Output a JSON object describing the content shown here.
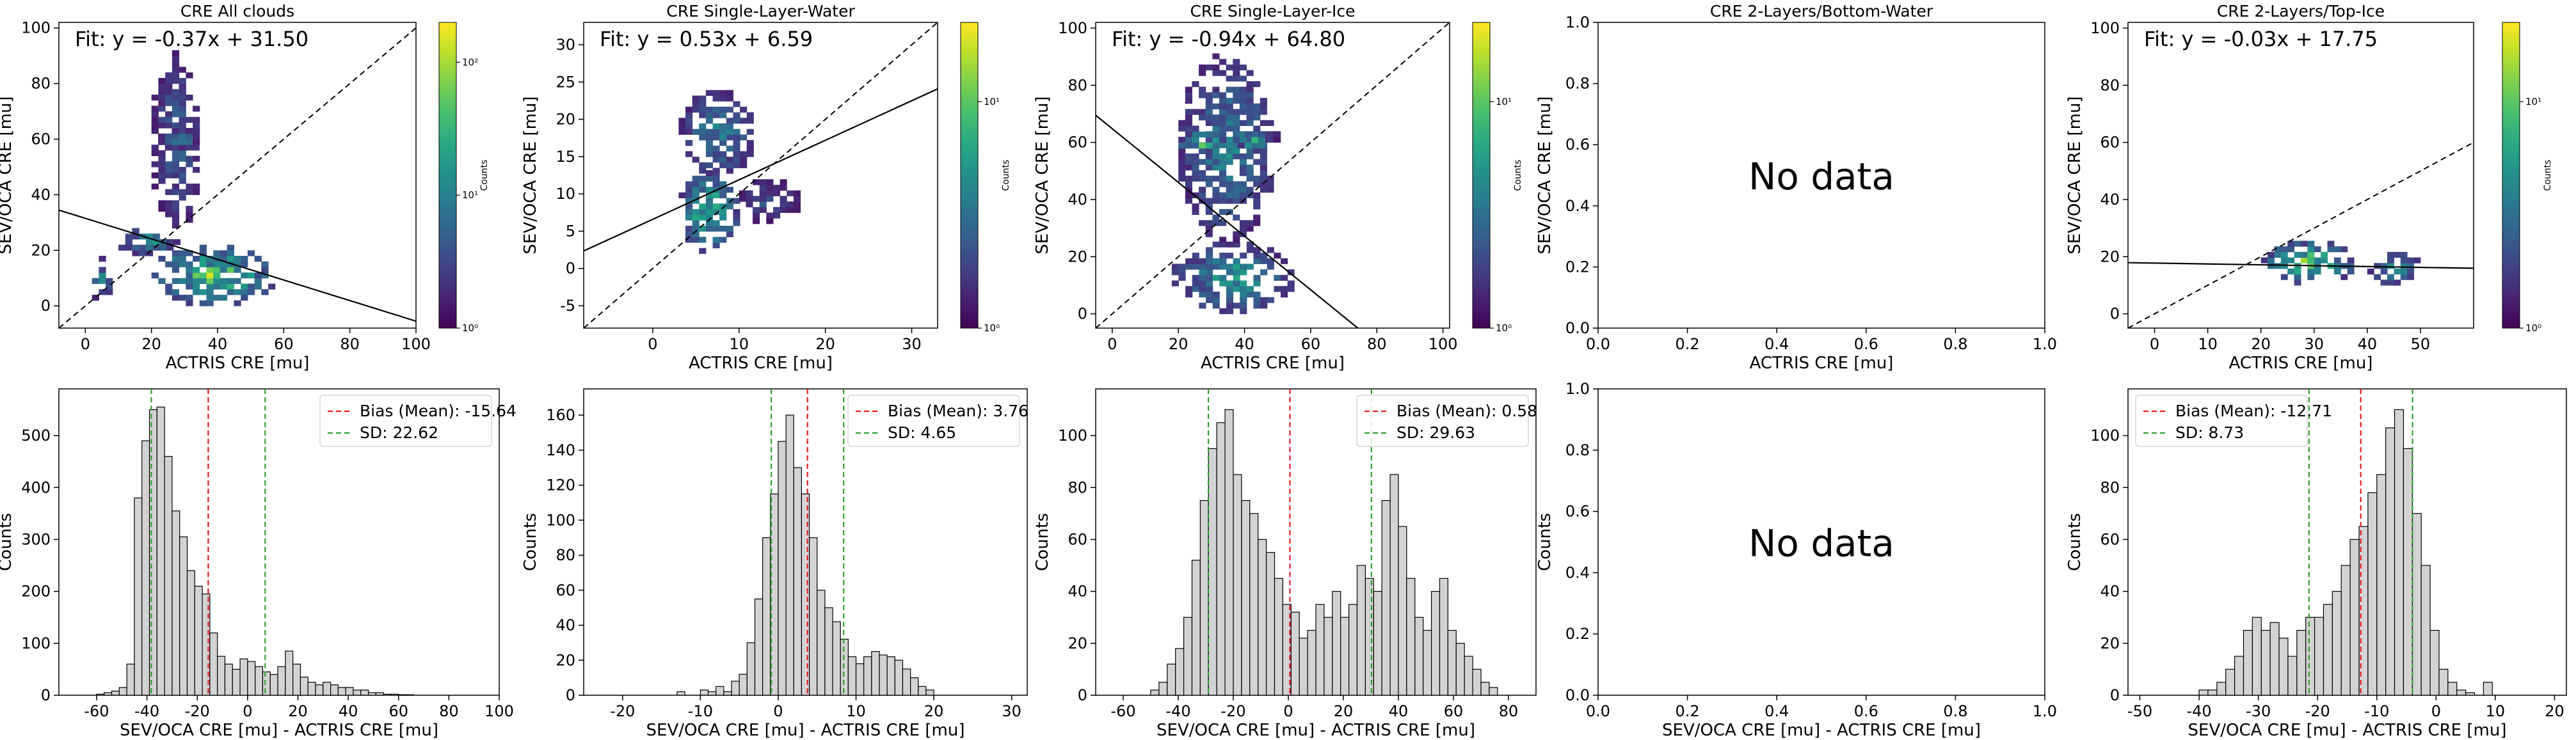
{
  "chart_data": [
    {
      "type": "heatmap",
      "title": "CRE All clouds",
      "xlabel": "ACTRIS CRE [mu]",
      "ylabel": "SEV/OCA CRE [mu]",
      "xlim": [
        -8,
        100
      ],
      "ylim": [
        -8,
        102
      ],
      "xticks": [
        0,
        20,
        40,
        60,
        80,
        100
      ],
      "yticks": [
        0,
        20,
        40,
        60,
        80,
        100
      ],
      "fit_text": "Fit: y = -0.37x + 31.50",
      "fit": {
        "slope": -0.37,
        "intercept": 31.5
      },
      "colorbar": {
        "label": "Counts",
        "ticks": [
          "10⁰",
          "10¹",
          "10²"
        ],
        "max_exp": 2.3
      },
      "blobs": [
        {
          "x": [
            20,
            58
          ],
          "y": [
            0,
            22
          ],
          "peak": 2.3
        },
        {
          "x": [
            10,
            28
          ],
          "y": [
            18,
            28
          ],
          "peak": 1.6
        },
        {
          "x": [
            2,
            8
          ],
          "y": [
            0,
            18
          ],
          "peak": 1.4
        },
        {
          "x": [
            20,
            35
          ],
          "y": [
            26,
            92
          ],
          "peak": 1.0
        },
        {
          "x": [
            22,
            36
          ],
          "y": [
            56,
            64
          ],
          "peak": 1.2
        }
      ]
    },
    {
      "type": "heatmap",
      "title": "CRE Single-Layer-Water",
      "xlabel": "ACTRIS CRE [mu]",
      "ylabel": "SEV/OCA CRE [mu]",
      "xlim": [
        -8,
        33
      ],
      "ylim": [
        -8,
        33
      ],
      "xticks": [
        0,
        10,
        20,
        30
      ],
      "yticks": [
        -5,
        0,
        5,
        10,
        15,
        20,
        25,
        30
      ],
      "fit_text": "Fit: y = 0.53x + 6.59",
      "fit": {
        "slope": 0.53,
        "intercept": 6.59
      },
      "colorbar": {
        "label": "Counts",
        "ticks": [
          "10⁰",
          "10¹"
        ],
        "max_exp": 1.35
      },
      "blobs": [
        {
          "x": [
            3,
            10
          ],
          "y": [
            2,
            13
          ],
          "peak": 1.3
        },
        {
          "x": [
            3,
            12
          ],
          "y": [
            12,
            24
          ],
          "peak": 0.8
        },
        {
          "x": [
            10,
            17
          ],
          "y": [
            6,
            12
          ],
          "peak": 0.5
        }
      ]
    },
    {
      "type": "heatmap",
      "title": "CRE Single-Layer-Ice",
      "xlabel": "ACTRIS CRE [mu]",
      "ylabel": "SEV/OCA CRE [mu]",
      "xlim": [
        -5,
        102
      ],
      "ylim": [
        -5,
        102
      ],
      "xticks": [
        0,
        20,
        40,
        60,
        80,
        100
      ],
      "yticks": [
        0,
        20,
        40,
        60,
        80,
        100
      ],
      "fit_text": "Fit: y = -0.94x + 64.80",
      "fit": {
        "slope": -0.94,
        "intercept": 64.8
      },
      "colorbar": {
        "label": "Counts",
        "ticks": [
          "10⁰",
          "10¹"
        ],
        "max_exp": 1.35
      },
      "blobs": [
        {
          "x": [
            18,
            55
          ],
          "y": [
            0,
            25
          ],
          "peak": 1.0
        },
        {
          "x": [
            20,
            50
          ],
          "y": [
            25,
            92
          ],
          "peak": 0.8
        },
        {
          "x": [
            20,
            35
          ],
          "y": [
            56,
            64
          ],
          "peak": 1.3
        },
        {
          "x": [
            38,
            48
          ],
          "y": [
            56,
            64
          ],
          "peak": 1.1
        }
      ]
    },
    {
      "type": "heatmap",
      "title": "CRE 2-Layers/Bottom-Water",
      "xlabel": "ACTRIS CRE [mu]",
      "ylabel": "SEV/OCA CRE [mu]",
      "xlim": [
        0,
        1
      ],
      "ylim": [
        0,
        1
      ],
      "xticks": [
        "0.0",
        "0.2",
        "0.4",
        "0.6",
        "0.8",
        "1.0"
      ],
      "yticks": [
        "0.0",
        "0.2",
        "0.4",
        "0.6",
        "0.8",
        "1.0"
      ],
      "empty_text": "No data"
    },
    {
      "type": "heatmap",
      "title": "CRE 2-Layers/Top-Ice",
      "xlabel": "ACTRIS CRE [mu]",
      "ylabel": "SEV/OCA CRE [mu]",
      "xlim": [
        -5,
        60
      ],
      "ylim": [
        -5,
        102
      ],
      "xticks": [
        0,
        10,
        20,
        30,
        40,
        50
      ],
      "yticks": [
        0,
        20,
        40,
        60,
        80,
        100
      ],
      "fit_text": "Fit: y = -0.03x + 17.75",
      "fit": {
        "slope": -0.03,
        "intercept": 17.75
      },
      "colorbar": {
        "label": "Counts",
        "ticks": [
          "10⁰",
          "10¹"
        ],
        "max_exp": 1.35
      },
      "blobs": [
        {
          "x": [
            20,
            38
          ],
          "y": [
            10,
            26
          ],
          "peak": 1.3
        },
        {
          "x": [
            40,
            50
          ],
          "y": [
            10,
            22
          ],
          "peak": 0.9
        }
      ]
    },
    {
      "type": "bar",
      "xlabel": "SEV/OCA CRE [mu] - ACTRIS CRE [mu]",
      "ylabel": "Counts",
      "xlim": [
        -75,
        100
      ],
      "ylim": [
        0,
        590
      ],
      "xticks": [
        -60,
        -40,
        -20,
        0,
        20,
        40,
        60,
        80,
        100
      ],
      "yticks": [
        0,
        100,
        200,
        300,
        400,
        500
      ],
      "bin_start": -60,
      "bin_width": 3,
      "counts": [
        2,
        5,
        8,
        15,
        60,
        380,
        490,
        550,
        555,
        460,
        355,
        305,
        240,
        210,
        195,
        120,
        75,
        60,
        50,
        70,
        65,
        55,
        45,
        40,
        55,
        85,
        60,
        35,
        25,
        20,
        25,
        20,
        15,
        15,
        10,
        10,
        5,
        5,
        2,
        2,
        1,
        1
      ],
      "bias": -15.64,
      "sd": 22.62,
      "legend": {
        "bias": "Bias (Mean): -15.64",
        "sd": "SD: 22.62",
        "position": "top-right"
      }
    },
    {
      "type": "bar",
      "xlabel": "SEV/OCA CRE [mu] - ACTRIS CRE [mu]",
      "ylabel": "Counts",
      "xlim": [
        -25,
        32
      ],
      "ylim": [
        0,
        175
      ],
      "xticks": [
        -20,
        -10,
        0,
        10,
        20,
        30
      ],
      "yticks": [
        0,
        20,
        40,
        60,
        80,
        100,
        120,
        140,
        160
      ],
      "bin_start": -13,
      "bin_width": 1,
      "counts": [
        2,
        0,
        0,
        3,
        2,
        5,
        2,
        8,
        12,
        30,
        55,
        90,
        115,
        145,
        160,
        130,
        115,
        90,
        60,
        50,
        42,
        32,
        22,
        18,
        22,
        25,
        23,
        22,
        20,
        15,
        10,
        5,
        3
      ],
      "bias": 3.76,
      "sd": 4.65,
      "legend": {
        "bias": "Bias (Mean): 3.76",
        "sd": "SD: 4.65",
        "position": "top-right"
      }
    },
    {
      "type": "bar",
      "xlabel": "SEV/OCA CRE [mu] - ACTRIS CRE [mu]",
      "ylabel": "Counts",
      "xlim": [
        -70,
        90
      ],
      "ylim": [
        0,
        118
      ],
      "xticks": [
        -60,
        -40,
        -20,
        0,
        20,
        40,
        60,
        80
      ],
      "yticks": [
        0,
        20,
        40,
        60,
        80,
        100
      ],
      "bin_start": -50,
      "bin_width": 3,
      "counts": [
        2,
        5,
        12,
        18,
        30,
        52,
        75,
        95,
        105,
        110,
        85,
        75,
        70,
        60,
        55,
        45,
        35,
        32,
        22,
        25,
        35,
        30,
        40,
        30,
        35,
        50,
        45,
        40,
        75,
        85,
        65,
        45,
        30,
        25,
        40,
        45,
        25,
        20,
        15,
        10,
        5,
        3
      ],
      "bias": 0.58,
      "sd": 29.63,
      "legend": {
        "bias": "Bias (Mean): 0.58",
        "sd": "SD: 29.63",
        "position": "top-right"
      }
    },
    {
      "type": "bar",
      "xlabel": "SEV/OCA CRE [mu] - ACTRIS CRE [mu]",
      "ylabel": "Counts",
      "xlim": [
        0,
        1
      ],
      "ylim": [
        0,
        1
      ],
      "xticks": [
        "0.0",
        "0.2",
        "0.4",
        "0.6",
        "0.8",
        "1.0"
      ],
      "yticks": [
        "0.0",
        "0.2",
        "0.4",
        "0.6",
        "0.8",
        "1.0"
      ],
      "empty_text": "No data"
    },
    {
      "type": "bar",
      "xlabel": "SEV/OCA CRE [mu] - ACTRIS CRE [mu]",
      "ylabel": "Counts",
      "xlim": [
        -52,
        22
      ],
      "ylim": [
        0,
        118
      ],
      "xticks": [
        -50,
        -40,
        -30,
        -20,
        -10,
        0,
        10,
        20
      ],
      "yticks": [
        0,
        20,
        40,
        60,
        80,
        100
      ],
      "bin_start": -40,
      "bin_width": 1.5,
      "counts": [
        2,
        2,
        5,
        10,
        15,
        25,
        30,
        25,
        28,
        22,
        15,
        25,
        30,
        30,
        35,
        40,
        50,
        60,
        65,
        78,
        85,
        103,
        110,
        95,
        70,
        50,
        25,
        10,
        5,
        2,
        1,
        0,
        5
      ],
      "bias": -12.71,
      "sd": 8.73,
      "legend": {
        "bias": "Bias (Mean): -12.71",
        "sd": "SD: 8.73",
        "position": "top-left"
      }
    }
  ]
}
